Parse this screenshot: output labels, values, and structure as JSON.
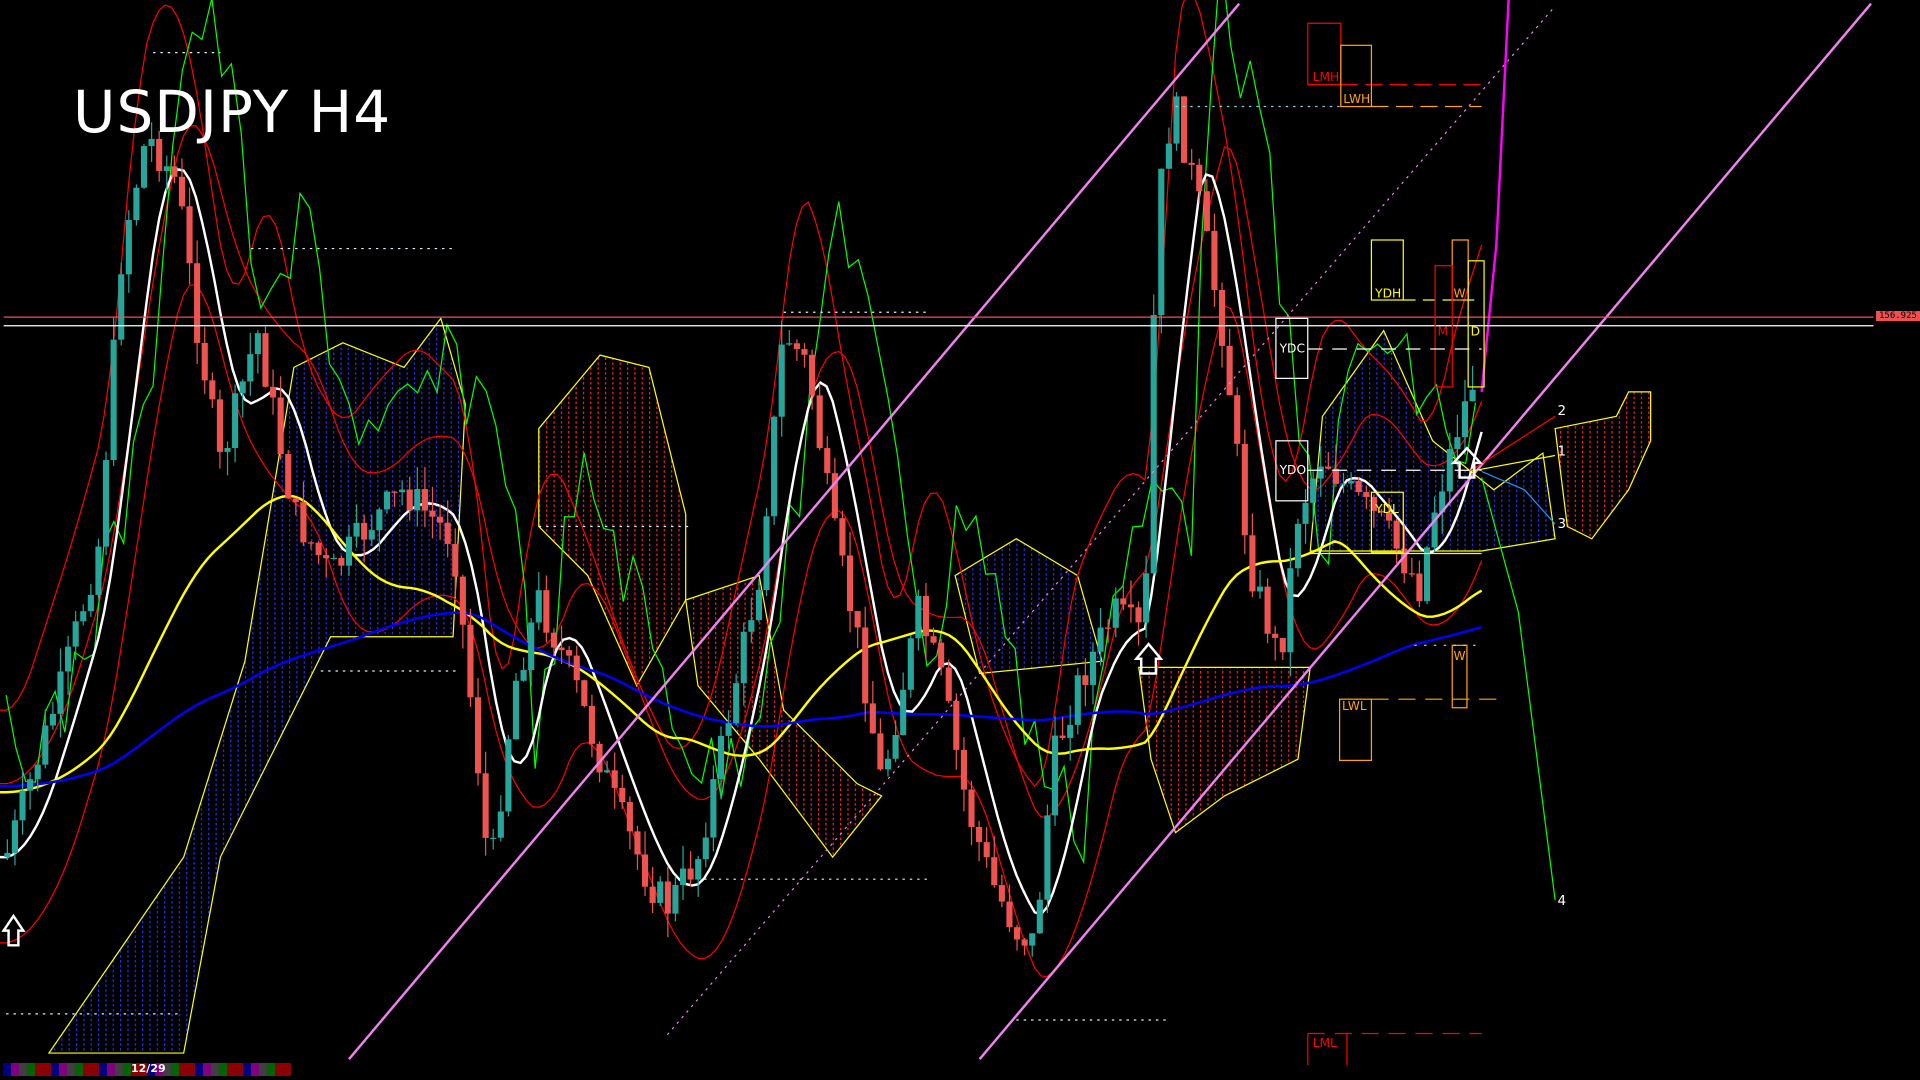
{
  "chart_title": "USDJPY H4",
  "current_price": "156.925",
  "levels": {
    "lmh": "LMH",
    "lwh": "LWH",
    "ydh": "YDH",
    "w_upper": "W",
    "m": "M",
    "d": "D",
    "ydc": "YDC",
    "ydo": "YDO",
    "ydl": "YDL",
    "lwl": "LWL",
    "w_lower": "W",
    "lml": "LML"
  },
  "projection_labels": [
    "1",
    "2",
    "3",
    "4"
  ],
  "date_label": "12/29",
  "colors": {
    "background": "#000000",
    "bull_candle": "#26a69a",
    "bear_candle": "#ef5350",
    "ma_white": "#ffffff",
    "ma_yellow": "#ffff00",
    "ma_blue": "#0000ff",
    "bands_red": "#ff0000",
    "oscillator_green": "#00ff00",
    "channel": "#ee82ee",
    "price_tag": "#f05050",
    "level_orange": "#ffa500"
  },
  "chart_data": {
    "type": "candlestick",
    "title": "USDJPY H4",
    "timeframe": "H4",
    "symbol": "USDJPY",
    "last_price": 156.925,
    "grid": false
  }
}
